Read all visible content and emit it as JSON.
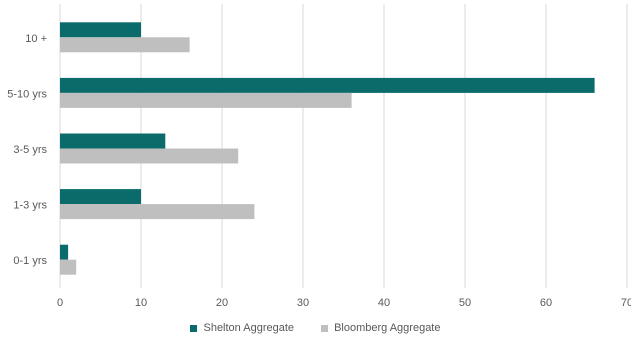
{
  "chart_data": {
    "type": "bar",
    "orientation": "horizontal",
    "categories": [
      "10 +",
      "5-10 yrs",
      "3-5 yrs",
      "1-3 yrs",
      "0-1 yrs"
    ],
    "series": [
      {
        "name": "Shelton Aggregate",
        "color": "#0b6b6b",
        "values": [
          10,
          66,
          13,
          10,
          1
        ]
      },
      {
        "name": "Bloomberg Aggregate",
        "color": "#bfbfbf",
        "values": [
          16,
          36,
          22,
          24,
          2
        ]
      }
    ],
    "xlim": [
      0,
      70
    ],
    "xticks": [
      0,
      10,
      20,
      30,
      40,
      50,
      60,
      70
    ],
    "grid": true,
    "legend_position": "bottom"
  }
}
